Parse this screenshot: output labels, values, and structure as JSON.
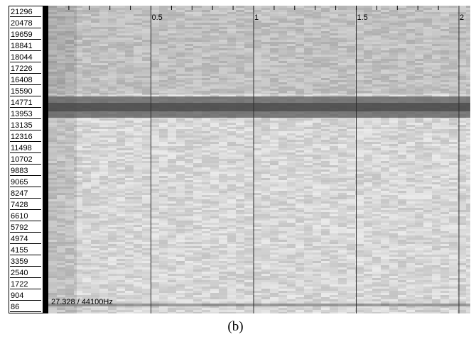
{
  "frequency_labels": [
    "21296",
    "20478",
    "19659",
    "18841",
    "18044",
    "17226",
    "16408",
    "15590",
    "14771",
    "13953",
    "13135",
    "12316",
    "11498",
    "10702",
    "9883",
    "9065",
    "8247",
    "7428",
    "6610",
    "5792",
    "4974",
    "4155",
    "3359",
    "2540",
    "1722",
    "904",
    "86"
  ],
  "time_labels": [
    "0.5",
    "1",
    "1.5",
    "2"
  ],
  "time_values": [
    0.5,
    1,
    1.5,
    2
  ],
  "sample_rate_label": "27.328 / 44100Hz",
  "caption": "(b)",
  "colors": {
    "dark_band": "#5a5a5a",
    "background": "#dcdcdc",
    "grid": "#2b2b2b"
  }
}
